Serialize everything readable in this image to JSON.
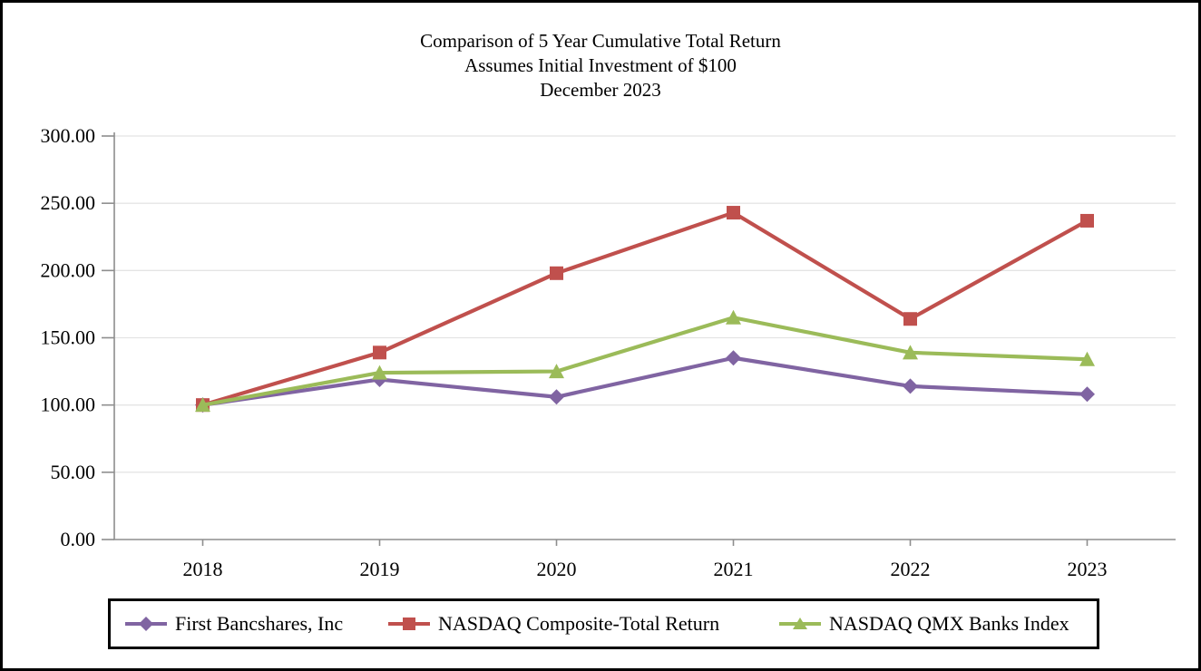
{
  "title": {
    "line1": "Comparison of 5 Year Cumulative Total Return",
    "line2": "Assumes Initial Investment of $100",
    "line3": "December 2023"
  },
  "chart_data": {
    "type": "line",
    "title": "Comparison of 5 Year Cumulative Total Return",
    "subtitle": "Assumes Initial Investment of $100",
    "date_label": "December 2023",
    "categories": [
      "2018",
      "2019",
      "2020",
      "2021",
      "2022",
      "2023"
    ],
    "series": [
      {
        "name": "First Bancshares, Inc",
        "marker": "diamond",
        "color": "#8064A2",
        "values": [
          100,
          119,
          106,
          135,
          114,
          108
        ]
      },
      {
        "name": "NASDAQ Composite-Total Return",
        "marker": "square",
        "color": "#C0504D",
        "values": [
          100,
          139,
          198,
          243,
          164,
          237
        ]
      },
      {
        "name": "NASDAQ QMX Banks Index",
        "marker": "triangle",
        "color": "#9BBB59",
        "values": [
          100,
          124,
          125,
          165,
          139,
          134
        ]
      }
    ],
    "ylim": [
      0,
      300
    ],
    "ytick_step": 50,
    "ytick_labels": [
      "0.00",
      "50.00",
      "100.00",
      "150.00",
      "200.00",
      "250.00",
      "300.00"
    ],
    "grid": true,
    "legend_position": "bottom",
    "axis_color": "#8E8E8E",
    "grid_color": "#E4E4E4",
    "text_color": "#000000"
  }
}
